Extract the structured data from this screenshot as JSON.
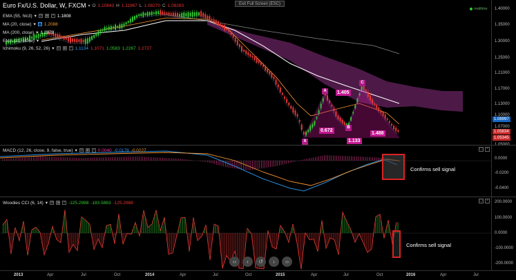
{
  "header": {
    "title": "Euro Fx/U.S. Dollar, W, FXCM",
    "ohlc": {
      "o_label": "O",
      "o": "1.10843",
      "h_label": "H",
      "h": "1.11967",
      "l_label": "L",
      "l": "1.08270",
      "c_label": "C",
      "c": "1.08283"
    },
    "exit_fullscreen": "Exit Full Screen (ESC)",
    "realtime": "realtime"
  },
  "indicators": {
    "ema": {
      "label": "EMA (55, hlc3)",
      "value": "1.1808"
    },
    "ma20": {
      "label": "MA (20, close)",
      "value": "1.2088"
    },
    "ma200": {
      "label": "MA (200, close)",
      "value": "1.2878"
    },
    "ema2": {
      "label": "EMA (21, close)",
      "value": ""
    },
    "ichimoku": {
      "label": "Ichimoku (9, 26, 52, 26)",
      "v1": "1.1134",
      "v2": "1.1071",
      "v3": "1.0583",
      "v4": "1.2267",
      "v5": "1.2727"
    }
  },
  "price_axis": {
    "labels": [
      "1.40000",
      "1.35000",
      "1.30000",
      "1.25000",
      "1.21000",
      "1.17000",
      "1.13000",
      "1.10000",
      "1.07000",
      "1.05000"
    ],
    "badges": [
      {
        "text": "1.08997",
        "color": "#1565c0"
      },
      {
        "text": "1.05834",
        "color": "#c62828"
      },
      {
        "text": "1.05345",
        "color": "#c62828"
      }
    ]
  },
  "harmonic": {
    "points": [
      "X",
      "A",
      "B",
      "C"
    ],
    "ratios": [
      "1.405",
      "0.672",
      "1.488",
      "1.133"
    ]
  },
  "macd": {
    "label": "MACD (12, 26, close, 9, false, true)",
    "v1": "0.0040",
    "v2": "-0.0178",
    "v3": "-0.0227",
    "axis": [
      "0.0000",
      "-0.0200",
      "-0.0400"
    ],
    "annotation": "Confirms sell signal"
  },
  "cci": {
    "label": "Woodies CCI (6, 14)",
    "v1": "-125.2988",
    "v2": "-183.5863",
    "v3": "-125.2988",
    "axis": [
      "200.0000",
      "100.0000",
      "0.0000",
      "-100.0000",
      "-200.0000"
    ],
    "annotation": "Confirms sell signal"
  },
  "time_axis": {
    "labels": [
      "2013",
      "Apr",
      "Jul",
      "Oct",
      "2014",
      "Apr",
      "Jul",
      "Oct",
      "2015",
      "Apr",
      "Jul",
      "Oct",
      "2016",
      "Apr",
      "Jul"
    ]
  },
  "nav": {
    "prev_far": "‹‹",
    "prev": "‹",
    "reset": "↺",
    "next": "›",
    "next_far": "››"
  },
  "colors": {
    "bull": "#33cc33",
    "bear": "#e53935",
    "ema": "#ffffff",
    "ma20": "#ff9933",
    "cloud": "#5a1f55",
    "harmonic": "#c2188f",
    "macd_line": "#2a8fe0",
    "signal_line": "#ff9933"
  }
}
